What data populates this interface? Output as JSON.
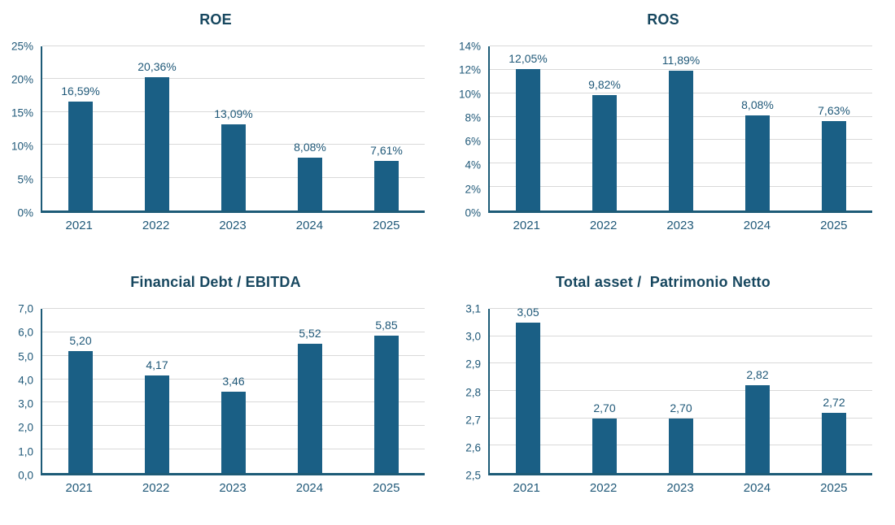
{
  "colors": {
    "bar": "#1A5F85",
    "axis": "#1D5B77",
    "grid": "#D9D9D9",
    "title": "#17475F",
    "tick": "#1F5878"
  },
  "chart_data": [
    {
      "type": "bar",
      "title": "ROE",
      "categories": [
        "2021",
        "2022",
        "2023",
        "2024",
        "2025"
      ],
      "values": [
        16.59,
        20.36,
        13.09,
        8.08,
        7.61
      ],
      "data_labels": [
        "16,59%",
        "20,36%",
        "13,09%",
        "8,08%",
        "7,61%"
      ],
      "ylim": [
        0,
        25
      ],
      "ytick_step": 5,
      "ytick_labels": [
        "0%",
        "5%",
        "10%",
        "15%",
        "20%",
        "25%"
      ],
      "xlabel": "",
      "ylabel": "",
      "grid": true,
      "legend": "none"
    },
    {
      "type": "bar",
      "title": "ROS",
      "categories": [
        "2021",
        "2022",
        "2023",
        "2024",
        "2025"
      ],
      "values": [
        12.05,
        9.82,
        11.89,
        8.08,
        7.63
      ],
      "data_labels": [
        "12,05%",
        "9,82%",
        "11,89%",
        "8,08%",
        "7,63%"
      ],
      "ylim": [
        0,
        14
      ],
      "ytick_step": 2,
      "ytick_labels": [
        "0%",
        "2%",
        "4%",
        "6%",
        "8%",
        "10%",
        "12%",
        "14%"
      ],
      "xlabel": "",
      "ylabel": "",
      "grid": true,
      "legend": "none"
    },
    {
      "type": "bar",
      "title": "Financial Debt / EBITDA",
      "categories": [
        "2021",
        "2022",
        "2023",
        "2024",
        "2025"
      ],
      "values": [
        5.2,
        4.17,
        3.46,
        5.52,
        5.85
      ],
      "data_labels": [
        "5,20",
        "4,17",
        "3,46",
        "5,52",
        "5,85"
      ],
      "ylim": [
        0,
        7
      ],
      "ytick_step": 1,
      "ytick_labels": [
        "0,0",
        "1,0",
        "2,0",
        "3,0",
        "4,0",
        "5,0",
        "6,0",
        "7,0"
      ],
      "xlabel": "",
      "ylabel": "",
      "grid": true,
      "legend": "none"
    },
    {
      "type": "bar",
      "title": "Total asset /  Patrimonio Netto",
      "categories": [
        "2021",
        "2022",
        "2023",
        "2024",
        "2025"
      ],
      "values": [
        3.05,
        2.7,
        2.7,
        2.82,
        2.72
      ],
      "data_labels": [
        "3,05",
        "2,70",
        "2,70",
        "2,82",
        "2,72"
      ],
      "ylim": [
        2.5,
        3.1
      ],
      "ytick_step": 0.1,
      "ytick_labels": [
        "2,5",
        "2,6",
        "2,7",
        "2,8",
        "2,9",
        "3,0",
        "3,1"
      ],
      "xlabel": "",
      "ylabel": "",
      "grid": true,
      "legend": "none"
    }
  ]
}
